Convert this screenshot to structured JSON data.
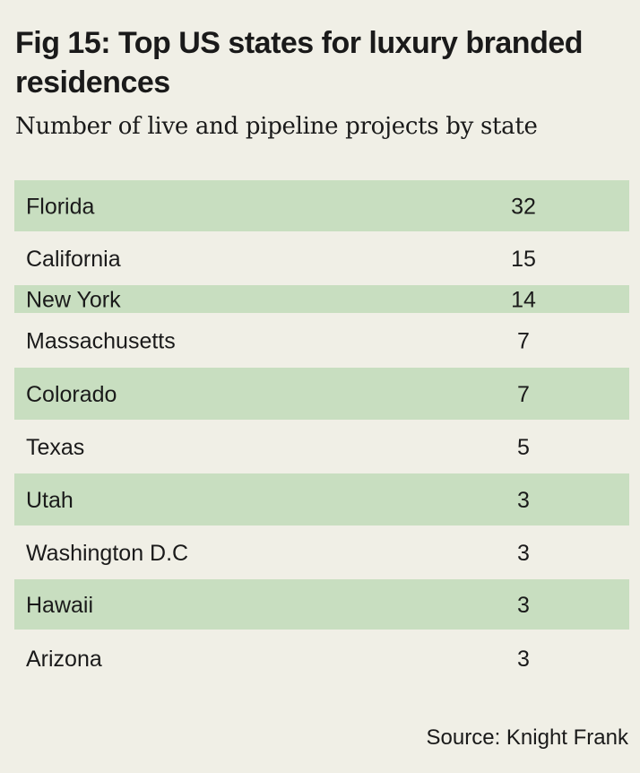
{
  "title": "Fig 15: Top US states for luxury branded residences",
  "subtitle": "Number of live and pipeline projects by state",
  "source": "Source: Knight Frank",
  "colors": {
    "background": "#f0efe6",
    "band": "#c8dec0",
    "text": "#1a1a1a"
  },
  "chart_data": {
    "type": "table",
    "title": "Fig 15: Top US states for luxury branded residences",
    "subtitle": "Number of live and pipeline projects by state",
    "categories": [
      "Florida",
      "California",
      "New York",
      "Massachusetts",
      "Colorado",
      "Texas",
      "Utah",
      "Washington D.C",
      "Hawaii",
      "Arizona"
    ],
    "values": [
      32,
      15,
      14,
      7,
      7,
      5,
      3,
      3,
      3,
      3
    ],
    "rows": [
      {
        "state": "Florida",
        "value": "32"
      },
      {
        "state": "California",
        "value": "15"
      },
      {
        "state": "New York",
        "value": "14"
      },
      {
        "state": "Massachusetts",
        "value": "7"
      },
      {
        "state": "Colorado",
        "value": "7"
      },
      {
        "state": "Texas",
        "value": "5"
      },
      {
        "state": "Utah",
        "value": "3"
      },
      {
        "state": "Washington D.C",
        "value": "3"
      },
      {
        "state": "Hawaii",
        "value": "3"
      },
      {
        "state": "Arizona",
        "value": "3"
      }
    ]
  }
}
